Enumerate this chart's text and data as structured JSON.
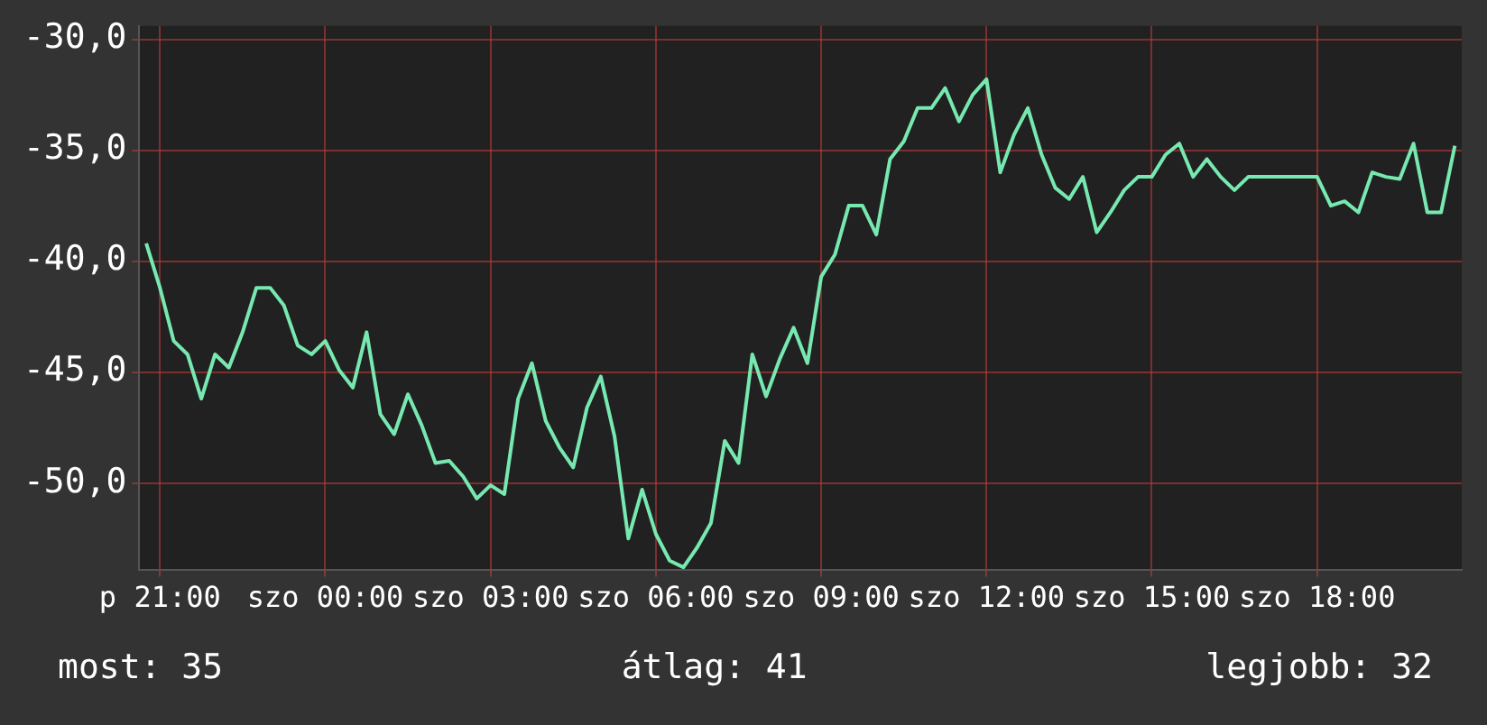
{
  "chart_data": {
    "type": "line",
    "categories": [
      null,
      "p 21:00",
      null,
      null,
      null,
      null,
      null,
      null,
      null,
      null,
      null,
      null,
      null,
      "szo 00:00",
      null,
      null,
      null,
      null,
      null,
      null,
      null,
      null,
      null,
      null,
      null,
      "szo 03:00",
      null,
      null,
      null,
      null,
      null,
      null,
      null,
      null,
      null,
      null,
      null,
      "szo 06:00",
      null,
      null,
      null,
      null,
      null,
      null,
      null,
      null,
      null,
      null,
      null,
      "szo 09:00",
      null,
      null,
      null,
      null,
      null,
      null,
      null,
      null,
      null,
      null,
      null,
      "szo 12:00",
      null,
      null,
      null,
      null,
      null,
      null,
      null,
      null,
      null,
      null,
      null,
      "szo 15:00",
      null,
      null,
      null,
      null,
      null,
      null,
      null,
      null,
      null,
      null,
      null,
      "szo 18:00",
      null,
      null,
      null,
      null,
      null,
      null,
      null,
      null,
      null,
      null
    ],
    "series": [
      {
        "color": "#77e8b0",
        "values": [
          -39.2,
          -41.2,
          -43.6,
          -44.2,
          -46.2,
          -44.2,
          -44.8,
          -43.2,
          -41.2,
          -41.2,
          -42.0,
          -43.8,
          -44.2,
          -43.6,
          -44.9,
          -45.7,
          -43.2,
          -46.9,
          -47.8,
          -46.0,
          -47.4,
          -49.1,
          -49.0,
          -49.7,
          -50.7,
          -50.1,
          -50.5,
          -46.2,
          -44.6,
          -47.2,
          -48.4,
          -49.3,
          -46.6,
          -45.2,
          -47.9,
          -52.5,
          -50.3,
          -52.3,
          -53.5,
          -53.8,
          -52.9,
          -51.8,
          -48.1,
          -49.1,
          -44.2,
          -46.1,
          -44.4,
          -43.0,
          -44.6,
          -40.7,
          -39.7,
          -37.5,
          -37.5,
          -38.8,
          -35.4,
          -34.6,
          -33.1,
          -33.1,
          -32.2,
          -33.7,
          -32.5,
          -31.8,
          -36.0,
          -34.3,
          -33.1,
          -35.2,
          -36.7,
          -37.2,
          -36.2,
          -38.7,
          -37.8,
          -36.8,
          -36.2,
          -36.2,
          -35.2,
          -34.7,
          -36.2,
          -35.4,
          -36.2,
          -36.8,
          -36.2,
          -36.2,
          -36.2,
          -36.2,
          -36.2,
          -36.2,
          -37.5,
          -37.3,
          -37.8,
          -36.0,
          -36.2,
          -36.3,
          -34.7,
          -37.8,
          -37.8,
          -34.8
        ]
      }
    ],
    "ylim": [
      -53.9,
      -29.4
    ],
    "yticks": [
      {
        "value": -50,
        "label": "-50,0"
      },
      {
        "value": -45,
        "label": "-45,0"
      },
      {
        "value": -40,
        "label": "-40,0"
      },
      {
        "value": -35,
        "label": "-35,0"
      },
      {
        "value": -30,
        "label": "-30,0"
      }
    ],
    "grid": true,
    "legend": false,
    "marker": "none",
    "line_style": "solid",
    "annotations": [
      "most: 35",
      "átlag: 41",
      "legjobb: 32"
    ]
  }
}
